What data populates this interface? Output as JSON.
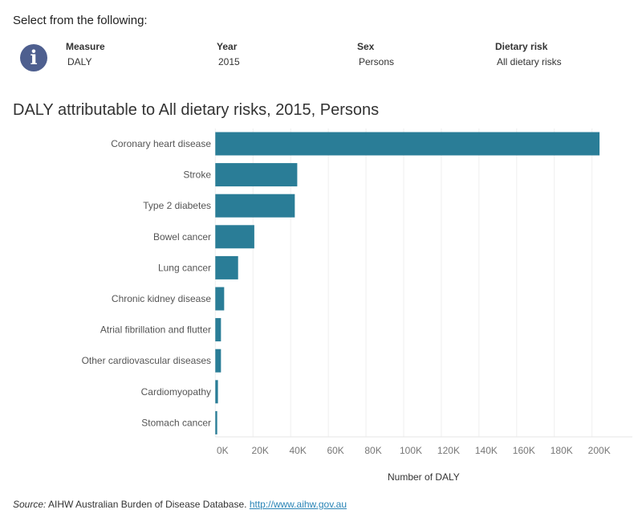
{
  "header": {
    "heading": "Select from the following:",
    "info_icon": "info-icon"
  },
  "filters": [
    {
      "label": "Measure",
      "value": "DALY"
    },
    {
      "label": "Year",
      "value": "2015"
    },
    {
      "label": "Sex",
      "value": "Persons"
    },
    {
      "label": "Dietary risk",
      "value": "All dietary risks"
    }
  ],
  "chart_data": {
    "type": "bar",
    "orientation": "horizontal",
    "title": "DALY attributable to All dietary risks, 2015, Persons",
    "xlabel": "Number of DALY",
    "ylabel": "",
    "categories": [
      "Coronary heart disease",
      "Stroke",
      "Type 2 diabetes",
      "Bowel cancer",
      "Lung cancer",
      "Chronic kidney disease",
      "Atrial fibrillation and flutter",
      "Other cardiovascular diseases",
      "Cardiomyopathy",
      "Stomach cancer"
    ],
    "values": [
      204000,
      43500,
      42200,
      20700,
      12100,
      4700,
      3000,
      3000,
      1400,
      1000
    ],
    "xlim": [
      0,
      215000
    ],
    "xticks": [
      0,
      20000,
      40000,
      60000,
      80000,
      100000,
      120000,
      140000,
      160000,
      180000,
      200000
    ],
    "xtick_labels": [
      "0K",
      "20K",
      "40K",
      "60K",
      "80K",
      "100K",
      "120K",
      "140K",
      "160K",
      "180K",
      "200K"
    ],
    "grid": true,
    "bar_color": "#2a7d97"
  },
  "footer": {
    "source_label": "Source:",
    "source_text": " AIHW Australian Burden of Disease Database. ",
    "link": "http://www.aihw.gov.au"
  }
}
